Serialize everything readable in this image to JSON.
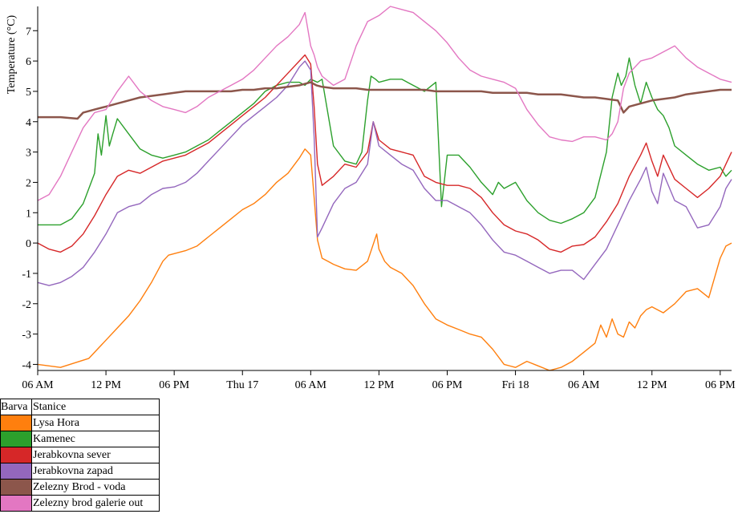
{
  "chart_data": {
    "type": "line",
    "ylabel": "Temperature (°C)",
    "xlabel": "",
    "x_unit": "hours",
    "xlim": [
      0,
      61
    ],
    "ylim": [
      -4.2,
      7.8
    ],
    "x_ticks": [
      {
        "x": 0,
        "label": "06 AM"
      },
      {
        "x": 6,
        "label": "12 PM"
      },
      {
        "x": 12,
        "label": "06 PM"
      },
      {
        "x": 18,
        "label": "Thu 17"
      },
      {
        "x": 24,
        "label": "06 AM"
      },
      {
        "x": 30,
        "label": "12 PM"
      },
      {
        "x": 36,
        "label": "06 PM"
      },
      {
        "x": 42,
        "label": "Fri 18"
      },
      {
        "x": 48,
        "label": "06 AM"
      },
      {
        "x": 54,
        "label": "12 PM"
      },
      {
        "x": 60,
        "label": "06 PM"
      }
    ],
    "y_ticks": [
      -4,
      -3,
      -2,
      -1,
      0,
      1,
      2,
      3,
      4,
      5,
      6,
      7
    ],
    "series": [
      {
        "name": "Lysa Hora",
        "color": "#ff7f0e",
        "x": [
          0,
          2,
          4.5,
          6,
          7,
          8,
          9,
          10,
          11,
          11.5,
          12,
          13,
          14,
          15,
          16,
          17,
          18,
          19,
          20,
          21,
          22,
          23,
          23.5,
          24,
          24.3,
          24.6,
          25,
          25.5,
          26,
          27,
          28,
          29,
          29.8,
          30,
          30.5,
          31,
          31.5,
          32,
          33,
          34,
          35,
          36,
          37,
          38,
          39,
          40,
          41,
          42,
          43,
          44,
          45,
          46,
          47,
          48,
          49,
          49.5,
          50,
          50.5,
          51,
          51.5,
          52,
          52.5,
          53,
          53.5,
          54,
          55,
          56,
          57,
          58,
          59,
          60,
          60.5,
          61
        ],
        "y": [
          -4,
          -4.1,
          -3.8,
          -3.2,
          -2.8,
          -2.4,
          -1.9,
          -1.3,
          -0.6,
          -0.4,
          -0.35,
          -0.25,
          -0.1,
          0.2,
          0.5,
          0.8,
          1.1,
          1.3,
          1.6,
          2,
          2.3,
          2.8,
          3.1,
          2.9,
          1.5,
          0.1,
          -0.5,
          -0.6,
          -0.7,
          -0.85,
          -0.9,
          -0.6,
          0.3,
          -0.2,
          -0.6,
          -0.8,
          -0.9,
          -1,
          -1.4,
          -2,
          -2.5,
          -2.7,
          -2.85,
          -3,
          -3.1,
          -3.5,
          -4,
          -4.1,
          -3.9,
          -4.05,
          -4.2,
          -4.1,
          -3.9,
          -3.6,
          -3.3,
          -2.7,
          -3.1,
          -2.5,
          -3,
          -3.1,
          -2.6,
          -2.8,
          -2.4,
          -2.2,
          -2.1,
          -2.3,
          -2,
          -1.6,
          -1.5,
          -1.8,
          -0.5,
          -0.1,
          0
        ]
      },
      {
        "name": "Kamenec",
        "color": "#2ca02c",
        "x": [
          0,
          2,
          3,
          4,
          5,
          5.3,
          5.6,
          6,
          6.3,
          6.6,
          7,
          8,
          9,
          10,
          11,
          12,
          13,
          14,
          15,
          16,
          17,
          18,
          19,
          20,
          21,
          22,
          23,
          23.5,
          24,
          24.3,
          24.6,
          25,
          26,
          27,
          28,
          28.5,
          29,
          29.3,
          29.7,
          30,
          31,
          32,
          33,
          34,
          35,
          35.5,
          36,
          37,
          38,
          39,
          40,
          40.5,
          41,
          42,
          43,
          44,
          45,
          46,
          47,
          48,
          49,
          50,
          50.5,
          51,
          51.3,
          51.7,
          52,
          52.5,
          53,
          53.5,
          54,
          54.5,
          55,
          55.5,
          56,
          57,
          58,
          59,
          60,
          60.5,
          61
        ],
        "y": [
          0.6,
          0.6,
          0.8,
          1.3,
          2.3,
          3.6,
          2.9,
          4.2,
          3.2,
          3.6,
          4.1,
          3.6,
          3.1,
          2.9,
          2.8,
          2.9,
          3,
          3.2,
          3.4,
          3.7,
          4,
          4.3,
          4.6,
          5,
          5.2,
          5.3,
          5.3,
          5.2,
          5.4,
          5.35,
          5.3,
          5.4,
          3.2,
          2.7,
          2.6,
          3,
          4.7,
          5.5,
          5.4,
          5.3,
          5.4,
          5.4,
          5.2,
          5,
          5.3,
          1.2,
          2.9,
          2.9,
          2.5,
          2,
          1.6,
          2,
          1.8,
          2,
          1.4,
          1,
          0.75,
          0.65,
          0.8,
          1,
          1.5,
          3,
          4.8,
          5.6,
          5.2,
          5.5,
          6.1,
          5.2,
          4.6,
          5.3,
          4.8,
          4.4,
          4.2,
          3.8,
          3.2,
          2.9,
          2.6,
          2.4,
          2.5,
          2.2,
          2.4
        ]
      },
      {
        "name": "Jerabkovna sever",
        "color": "#d62728",
        "x": [
          0,
          1,
          2,
          3,
          4,
          5,
          6,
          7,
          8,
          9,
          10,
          11,
          12,
          13,
          14,
          15,
          16,
          17,
          18,
          19,
          20,
          21,
          22,
          23,
          23.5,
          24,
          24.3,
          24.6,
          25,
          26,
          27,
          28,
          29,
          29.5,
          30,
          31,
          32,
          33,
          34,
          35,
          36,
          37,
          38,
          39,
          40,
          41,
          42,
          43,
          44,
          45,
          46,
          47,
          48,
          49,
          50,
          51,
          52,
          53,
          53.5,
          54,
          54.5,
          55,
          56,
          57,
          58,
          59,
          60,
          60.5,
          61
        ],
        "y": [
          0,
          -0.2,
          -0.3,
          -0.1,
          0.3,
          0.9,
          1.6,
          2.2,
          2.4,
          2.3,
          2.5,
          2.7,
          2.8,
          2.9,
          3.1,
          3.3,
          3.6,
          3.9,
          4.2,
          4.5,
          4.8,
          5.2,
          5.6,
          6,
          6.2,
          5.9,
          4.5,
          2.6,
          1.9,
          2.2,
          2.6,
          2.5,
          3,
          4,
          3.4,
          3.1,
          3,
          2.9,
          2.2,
          2,
          1.9,
          1.9,
          1.8,
          1.5,
          1,
          0.6,
          0.4,
          0.3,
          0.1,
          -0.2,
          -0.3,
          -0.1,
          -0.05,
          0.2,
          0.7,
          1.3,
          2.2,
          2.9,
          3.3,
          2.7,
          2.2,
          2.9,
          2.1,
          1.8,
          1.5,
          1.8,
          2.2,
          2.6,
          3
        ]
      },
      {
        "name": "Jerabkovna zapad",
        "color": "#9467bd",
        "x": [
          0,
          1,
          2,
          3,
          4,
          5,
          6,
          7,
          8,
          9,
          10,
          11,
          12,
          13,
          14,
          15,
          16,
          17,
          18,
          19,
          20,
          21,
          22,
          23,
          23.5,
          24,
          24.3,
          24.6,
          25,
          26,
          27,
          28,
          29,
          29.5,
          30,
          31,
          32,
          33,
          34,
          35,
          36,
          37,
          38,
          39,
          40,
          41,
          42,
          43,
          44,
          45,
          46,
          47,
          48,
          49,
          50,
          51,
          52,
          53,
          53.5,
          54,
          54.5,
          55,
          56,
          57,
          58,
          59,
          60,
          60.5,
          61
        ],
        "y": [
          -1.3,
          -1.4,
          -1.3,
          -1.1,
          -0.8,
          -0.3,
          0.3,
          1,
          1.2,
          1.3,
          1.6,
          1.8,
          1.85,
          2,
          2.3,
          2.7,
          3.1,
          3.5,
          3.9,
          4.2,
          4.5,
          4.8,
          5.2,
          5.8,
          6,
          5.7,
          3.5,
          0.2,
          0.5,
          1.3,
          1.8,
          2,
          2.6,
          4,
          3.2,
          2.9,
          2.6,
          2.4,
          1.8,
          1.4,
          1.4,
          1.2,
          1,
          0.6,
          0.1,
          -0.3,
          -0.4,
          -0.6,
          -0.8,
          -1,
          -0.9,
          -0.9,
          -1.2,
          -0.7,
          -0.2,
          0.6,
          1.4,
          2.1,
          2.5,
          1.7,
          1.3,
          2.3,
          1.4,
          1.2,
          0.5,
          0.6,
          1.2,
          1.8,
          2.1
        ]
      },
      {
        "name": "Zelezny Brod - voda",
        "color": "#8c564b",
        "x": [
          0,
          2,
          3.5,
          4,
          5,
          6,
          7,
          8,
          9,
          10,
          11,
          12,
          13,
          14,
          15,
          16,
          17,
          18,
          19,
          20,
          21,
          22,
          23,
          24,
          24.5,
          25,
          26,
          27,
          28,
          29,
          30,
          31,
          32,
          33,
          34,
          35,
          36,
          37,
          38,
          39,
          40,
          41,
          42,
          43,
          44,
          45,
          46,
          47,
          48,
          49,
          50,
          51,
          51.5,
          52,
          53,
          54,
          55,
          56,
          57,
          58,
          59,
          60,
          61
        ],
        "y": [
          4.15,
          4.15,
          4.1,
          4.3,
          4.4,
          4.5,
          4.6,
          4.7,
          4.8,
          4.85,
          4.9,
          4.95,
          5,
          5,
          5,
          5,
          5,
          5.05,
          5.05,
          5.1,
          5.1,
          5.15,
          5.2,
          5.3,
          5.2,
          5.15,
          5.1,
          5.1,
          5.1,
          5.05,
          5.05,
          5.05,
          5.05,
          5.05,
          5.05,
          5,
          5,
          5,
          5,
          5,
          4.95,
          4.95,
          4.95,
          4.95,
          4.9,
          4.9,
          4.9,
          4.85,
          4.8,
          4.8,
          4.75,
          4.7,
          4.3,
          4.5,
          4.6,
          4.7,
          4.75,
          4.8,
          4.9,
          4.95,
          5,
          5.05,
          5.05
        ]
      },
      {
        "name": "Zelezny brod galerie out",
        "color": "#e377c2",
        "x": [
          0,
          1,
          2,
          3,
          4,
          5,
          6,
          7,
          8,
          9,
          10,
          11,
          12,
          13,
          14,
          15,
          16,
          17,
          18,
          19,
          20,
          21,
          22,
          23,
          23.5,
          24,
          24.3,
          24.6,
          25,
          26,
          27,
          28,
          29,
          30,
          31,
          32,
          33,
          34,
          35,
          36,
          37,
          38,
          39,
          40,
          41,
          42,
          43,
          44,
          45,
          46,
          47,
          48,
          49,
          50,
          50.5,
          51,
          51.5,
          52,
          53,
          54,
          55,
          56,
          57,
          58,
          59,
          60,
          61
        ],
        "y": [
          1.4,
          1.6,
          2.2,
          3,
          3.8,
          4.3,
          4.4,
          5,
          5.5,
          5,
          4.7,
          4.5,
          4.4,
          4.3,
          4.5,
          4.8,
          5,
          5.2,
          5.4,
          5.7,
          6.1,
          6.5,
          6.8,
          7.2,
          7.6,
          6.5,
          6.2,
          5.8,
          5.5,
          5.2,
          5.4,
          6.5,
          7.3,
          7.5,
          7.8,
          7.7,
          7.6,
          7.3,
          7,
          6.6,
          6.1,
          5.7,
          5.5,
          5.4,
          5.3,
          5.1,
          4.4,
          3.9,
          3.5,
          3.4,
          3.35,
          3.5,
          3.5,
          3.4,
          3.6,
          4,
          5.1,
          5.6,
          6,
          6.1,
          6.3,
          6.5,
          6.1,
          5.8,
          5.6,
          5.4,
          5.3
        ]
      }
    ]
  },
  "legend": {
    "header_color": "Barva",
    "header_station": "Stanice"
  }
}
